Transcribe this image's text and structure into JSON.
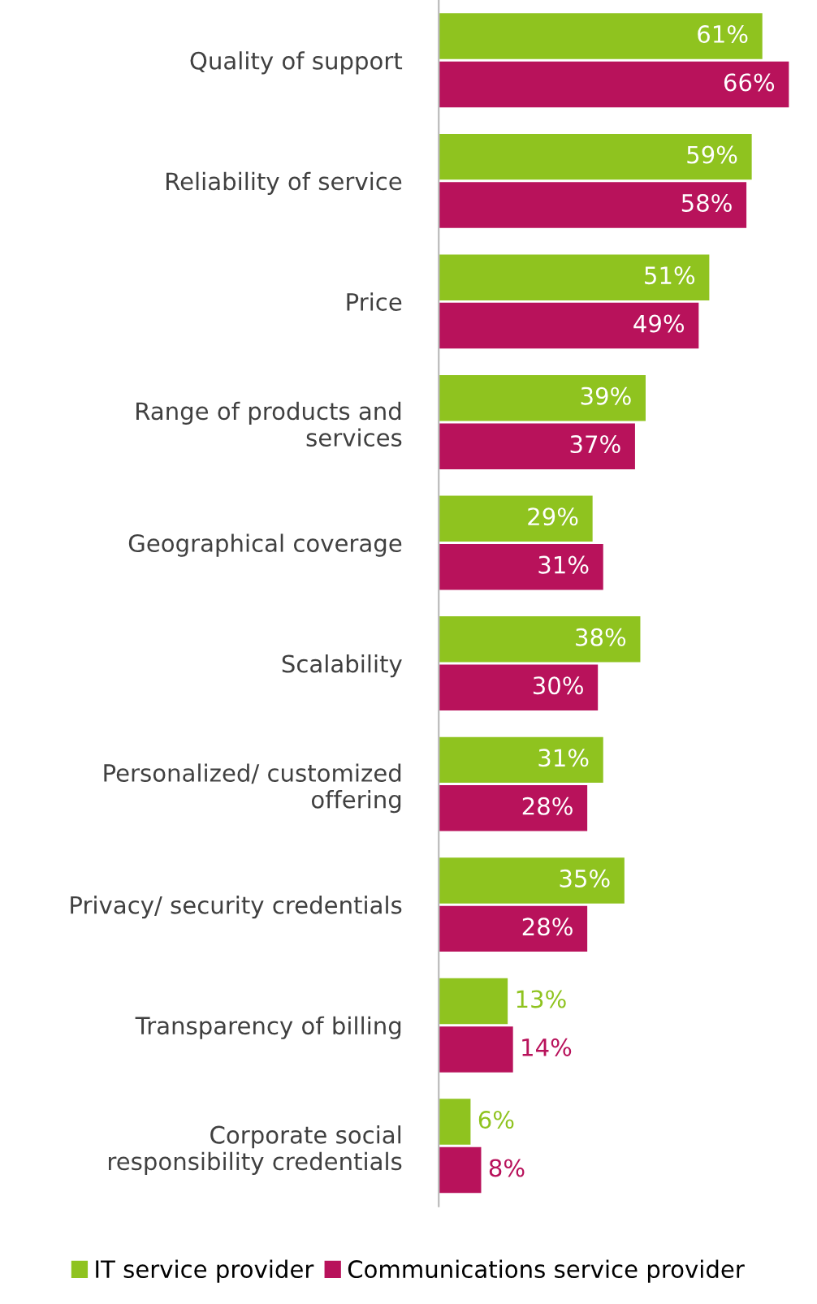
{
  "chart_data": {
    "type": "bar",
    "orientation": "horizontal",
    "legend": "bottom",
    "grid": false,
    "categories": [
      "Quality of support",
      "Reliability of service",
      "Price",
      "Range of products and\nservices",
      "Geographical coverage",
      "Scalability",
      "Personalized/ customized\noffering",
      "Privacy/ security credentials",
      "Transparency of billing",
      "Corporate social\nresponsibility credentials"
    ],
    "series": [
      {
        "name": "IT service provider",
        "color": "#8fc31f",
        "values": [
          61,
          59,
          51,
          39,
          29,
          38,
          31,
          35,
          13,
          6
        ],
        "value_labels": [
          "61%",
          "59%",
          "51%",
          "39%",
          "29%",
          "38%",
          "31%",
          "35%",
          "13%",
          "6%"
        ]
      },
      {
        "name": "Communications service provider",
        "color": "#b8125b",
        "values": [
          66,
          58,
          49,
          37,
          31,
          30,
          28,
          28,
          14,
          8
        ],
        "value_labels": [
          "66%",
          "58%",
          "49%",
          "37%",
          "31%",
          "30%",
          "28%",
          "28%",
          "14%",
          "8%"
        ]
      }
    ]
  }
}
